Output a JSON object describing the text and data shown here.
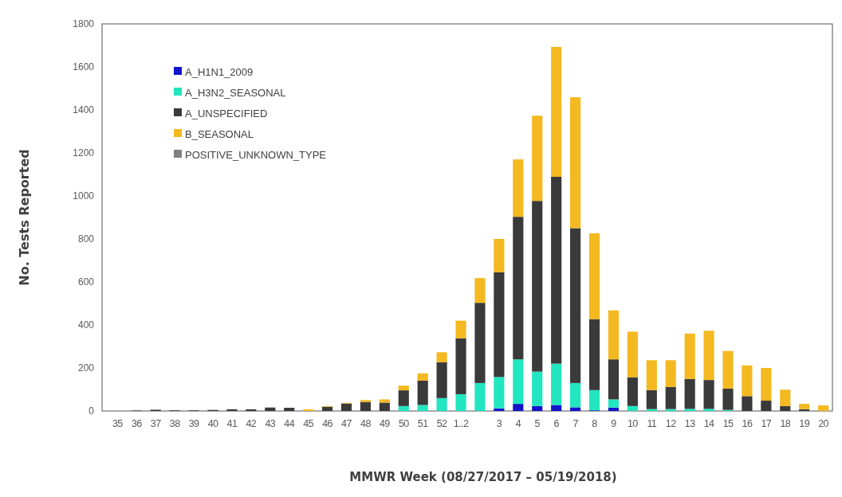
{
  "chart_data": {
    "type": "bar",
    "stacked": true,
    "xlabel": "MMWR Week (08/27/2017 – 05/19/2018)",
    "ylabel": "No. Tests Reported",
    "categories": [
      "35",
      "36",
      "37",
      "38",
      "39",
      "40",
      "41",
      "42",
      "43",
      "44",
      "45",
      "46",
      "47",
      "48",
      "49",
      "50",
      "51",
      "52",
      "1..2",
      null,
      "3",
      "4",
      "5",
      "6",
      "7",
      "8",
      "9",
      "10",
      "11",
      "12",
      "13",
      "14",
      "15",
      "16",
      "17",
      "18",
      "19",
      "20"
    ],
    "ylim": [
      0,
      1800
    ],
    "yticks": [
      0,
      200,
      400,
      600,
      800,
      1000,
      1200,
      1400,
      1600,
      1800
    ],
    "grid": false,
    "legend": "top left",
    "series": [
      {
        "name": "A_H1N1_2009",
        "color": "#1414c8",
        "values": [
          0,
          0,
          0,
          0,
          0,
          0,
          0,
          0,
          0,
          0,
          0,
          0,
          0,
          0,
          0,
          0,
          0,
          0,
          0,
          0,
          12,
          33,
          23,
          28,
          17,
          3,
          16,
          0,
          0,
          0,
          0,
          0,
          0,
          0,
          0,
          0,
          0,
          0
        ]
      },
      {
        "name": "A_H3N2_SEASONAL",
        "color": "#22e6c0",
        "values": [
          0,
          0,
          0,
          0,
          0,
          0,
          0,
          0,
          0,
          0,
          0,
          0,
          0,
          0,
          0,
          23,
          28,
          60,
          78,
          130,
          146,
          207,
          160,
          192,
          113,
          94,
          38,
          23,
          9,
          9,
          10,
          10,
          5,
          0,
          0,
          0,
          0,
          0
        ]
      },
      {
        "name": "A_UNSPECIFIED",
        "color": "#3a3a3a",
        "values": [
          null,
          2,
          6,
          3,
          3,
          5,
          8,
          8,
          16,
          15,
          null,
          20,
          35,
          42,
          39,
          73,
          113,
          167,
          260,
          373,
          487,
          663,
          794,
          869,
          720,
          330,
          186,
          134,
          88,
          103,
          139,
          134,
          99,
          69,
          48,
          23,
          8,
          0
        ]
      },
      {
        "name": "B_SEASONAL",
        "color": "#f4b920",
        "values": [
          0,
          0,
          0,
          0,
          0,
          0,
          0,
          0,
          0,
          0,
          8,
          3,
          3,
          9,
          15,
          22,
          34,
          46,
          82,
          115,
          155,
          267,
          396,
          604,
          609,
          399,
          228,
          212,
          139,
          124,
          211,
          229,
          175,
          143,
          152,
          76,
          25,
          26
        ]
      },
      {
        "name": "POSITIVE_UNKNOWN_TYPE",
        "color": "#808080",
        "values": [
          0,
          0,
          0,
          0,
          0,
          0,
          0,
          0,
          0,
          0,
          0,
          0,
          0,
          0,
          0,
          0,
          0,
          0,
          0,
          0,
          0,
          0,
          0,
          0,
          0,
          0,
          0,
          0,
          0,
          0,
          0,
          0,
          0,
          0,
          0,
          0,
          0,
          0
        ]
      }
    ]
  }
}
